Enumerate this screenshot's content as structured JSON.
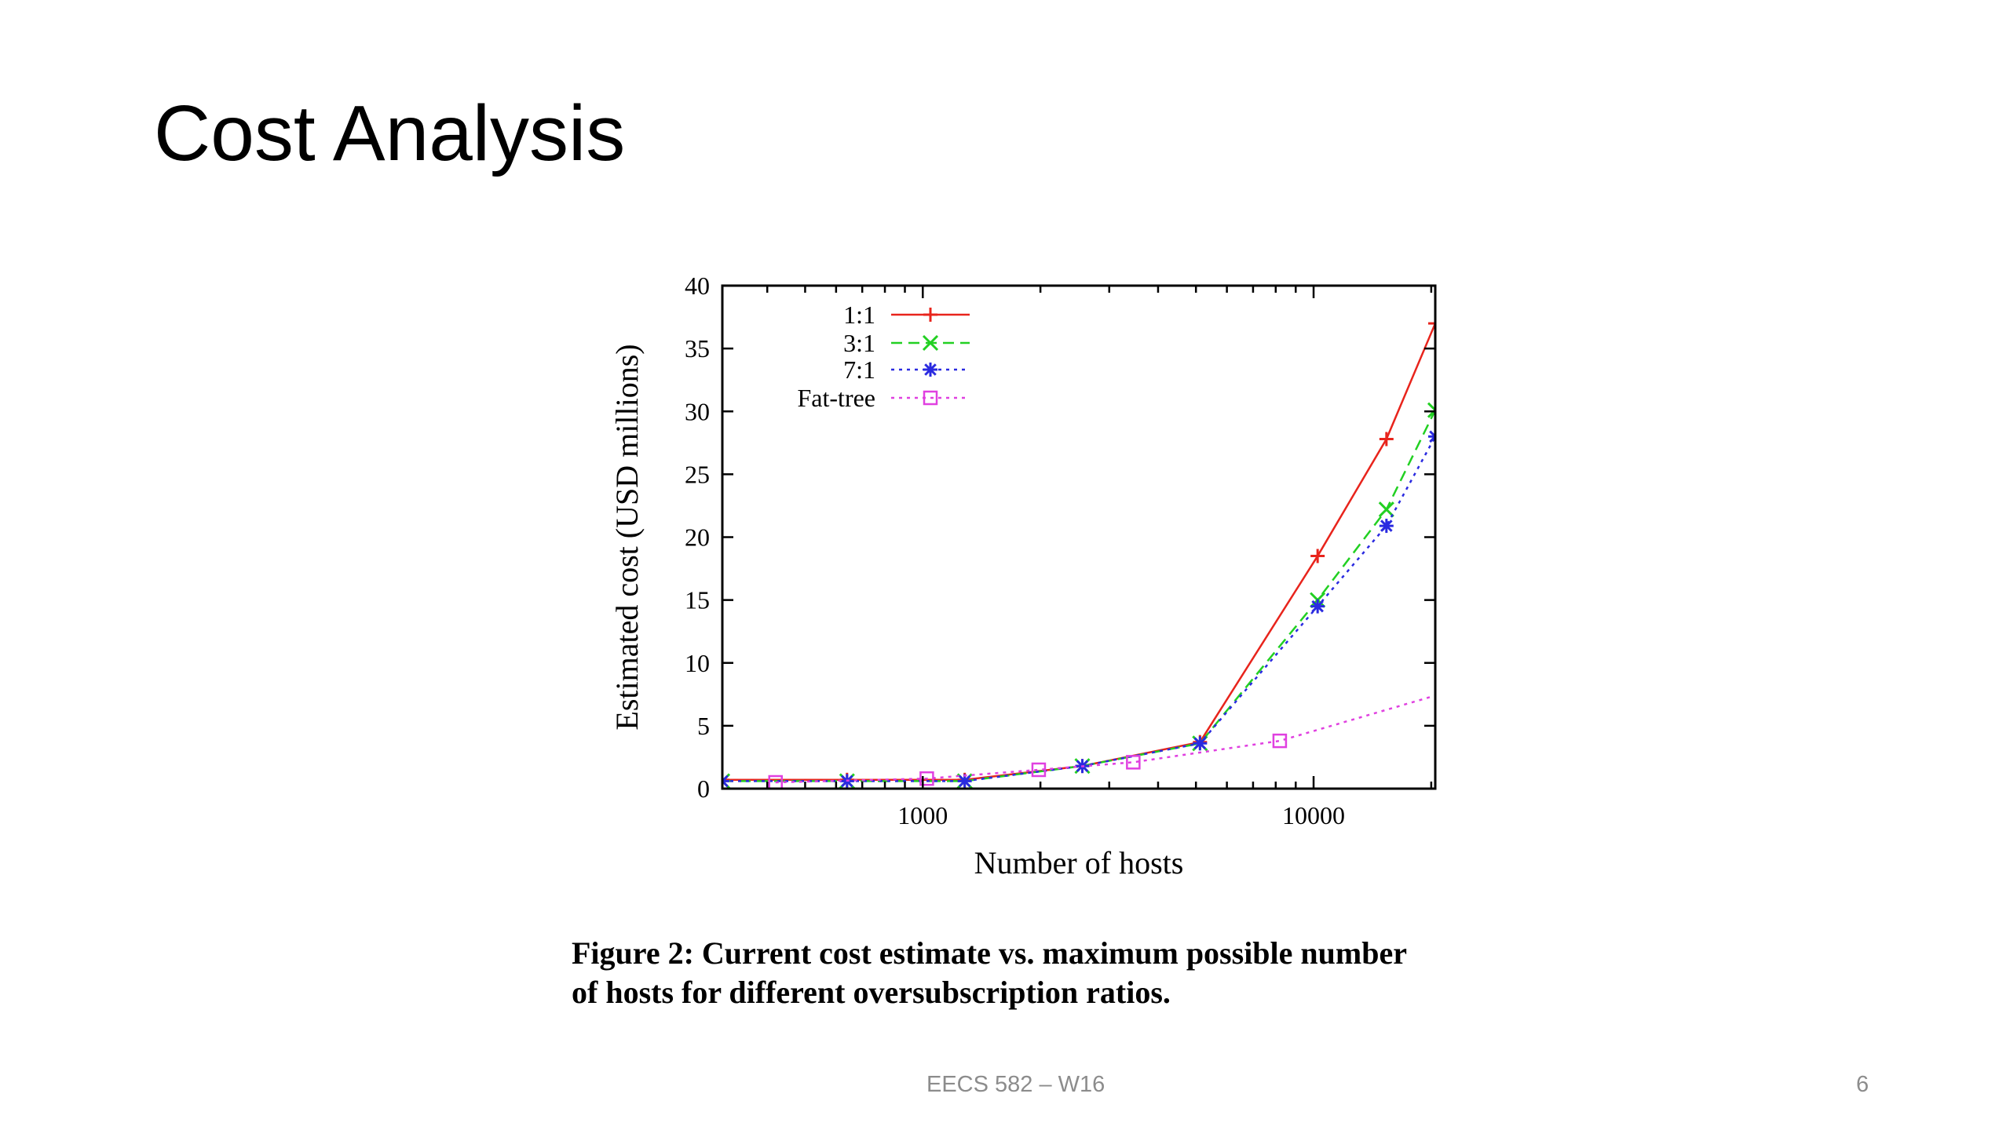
{
  "slide": {
    "title": "Cost Analysis",
    "caption_line1": "Figure 2: Current cost estimate vs. maximum possible number",
    "caption_line2": "of hosts for different oversubscription ratios.",
    "footer": "EECS 582 – W16",
    "page_number": "6"
  },
  "chart_data": {
    "type": "line",
    "xlabel": "Number of hosts",
    "ylabel": "Estimated cost (USD millions)",
    "x_scale": "log",
    "xlim": [
      307,
      20480
    ],
    "ylim": [
      0,
      40
    ],
    "x_ticks": [
      1000,
      10000
    ],
    "x_tick_labels": [
      "1000",
      "10000"
    ],
    "y_ticks": [
      0,
      5,
      10,
      15,
      20,
      25,
      30,
      35,
      40
    ],
    "y_tick_labels": [
      "0",
      "5",
      "10",
      "15",
      "20",
      "25",
      "30",
      "35",
      "40"
    ],
    "grid": false,
    "legend_position": "top-left",
    "series": [
      {
        "name": "1:1",
        "color": "#e8241c",
        "line_style": "solid",
        "marker": "plus",
        "x": [
          307,
          640,
          1280,
          2560,
          5120,
          10240,
          15360,
          20480
        ],
        "y": [
          0.7,
          0.7,
          0.7,
          1.8,
          3.7,
          18.5,
          27.8,
          37.0
        ]
      },
      {
        "name": "3:1",
        "color": "#22d022",
        "line_style": "dashed",
        "marker": "x",
        "x": [
          307,
          640,
          1280,
          2560,
          5120,
          10240,
          15360,
          20480
        ],
        "y": [
          0.6,
          0.6,
          0.6,
          1.8,
          3.6,
          15.0,
          22.2,
          30.1
        ]
      },
      {
        "name": "7:1",
        "color": "#2a2ae0",
        "line_style": "dotted",
        "marker": "star",
        "x": [
          307,
          640,
          1280,
          2560,
          5120,
          10240,
          15360,
          20480
        ],
        "y": [
          0.6,
          0.6,
          0.6,
          1.8,
          3.6,
          14.5,
          20.9,
          28.0
        ]
      },
      {
        "name": "Fat-tree",
        "color": "#e040e0",
        "line_style": "dotted",
        "marker": "square",
        "x": [
          420,
          1024,
          1980,
          3456,
          8192
        ],
        "y": [
          0.5,
          0.8,
          1.5,
          2.1,
          3.8
        ],
        "x_line_end": 20480,
        "y_line_end": 7.4
      }
    ]
  }
}
